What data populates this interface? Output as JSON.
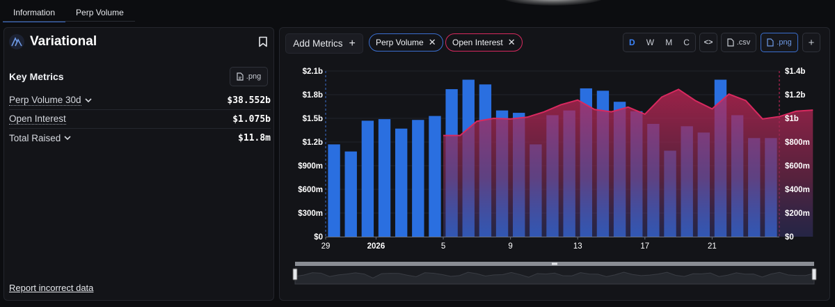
{
  "tabs": [
    {
      "label": "Information",
      "active": true
    },
    {
      "label": "Perp Volume",
      "active": false
    }
  ],
  "project": {
    "name": "Variational",
    "logo_icon": "variational-logo-icon",
    "bookmark_icon": "bookmark-icon"
  },
  "key_metrics": {
    "title": "Key Metrics",
    "export_label": ".png",
    "rows": [
      {
        "label": "Perp Volume 30d",
        "value": "$38.552b",
        "has_dropdown": true,
        "dotted": true
      },
      {
        "label": "Open Interest",
        "value": "$1.075b",
        "has_dropdown": false,
        "dotted": true
      },
      {
        "label": "Total Raised",
        "value": "$11.8m",
        "has_dropdown": true,
        "dotted": false
      }
    ]
  },
  "report_link": "Report incorrect data",
  "toolbar": {
    "add_metrics": "Add Metrics",
    "add_icon": "+",
    "chips": [
      {
        "label": "Perp Volume",
        "color": "#3b6fd0"
      },
      {
        "label": "Open Interest",
        "color": "#d8295f"
      }
    ],
    "timeframes": [
      {
        "label": "D",
        "active": true
      },
      {
        "label": "W",
        "active": false
      },
      {
        "label": "M",
        "active": false
      },
      {
        "label": "C",
        "active": false
      }
    ],
    "embed_label": "<>",
    "csv_label": ".csv",
    "png_label": ".png",
    "plus_label": "+"
  },
  "colors": {
    "perp_volume": "#2a6fe0",
    "open_interest": "#d8295f",
    "accent": "#3b82f6"
  },
  "chart_data": {
    "type": "bar",
    "x_labels": [
      "29",
      "2026",
      "5",
      "9",
      "13",
      "17",
      "21"
    ],
    "left_axis": {
      "ticks": [
        "$0",
        "$300m",
        "$600m",
        "$900m",
        "$1.2b",
        "$1.5b",
        "$1.8b",
        "$2.1b"
      ],
      "ylim": [
        0,
        2.1
      ]
    },
    "right_axis": {
      "ticks": [
        "$0",
        "$200m",
        "$400m",
        "$600m",
        "$800m",
        "$1b",
        "$1.2b",
        "$1.4b"
      ],
      "ylim": [
        0,
        1.4
      ]
    },
    "series": [
      {
        "name": "Perp Volume",
        "type": "bar",
        "axis": "left",
        "values": [
          1.17,
          1.08,
          1.47,
          1.49,
          1.37,
          1.48,
          1.53,
          1.87,
          1.99,
          1.93,
          1.6,
          1.57,
          1.17,
          1.54,
          1.6,
          1.88,
          1.85,
          1.71,
          1.59,
          1.43,
          1.09,
          1.4,
          1.32,
          1.99,
          1.54,
          1.25,
          1.25
        ]
      },
      {
        "name": "Open Interest",
        "type": "area",
        "axis": "right",
        "start_index": 6.5,
        "values": [
          0.855,
          0.855,
          0.975,
          1.0,
          0.995,
          1.01,
          1.055,
          1.115,
          1.155,
          1.075,
          1.055,
          1.095,
          1.035,
          1.18,
          1.245,
          1.15,
          1.08,
          1.205,
          1.15,
          0.995,
          1.015,
          1.06,
          1.07
        ]
      }
    ],
    "grid": true,
    "legend": "none"
  }
}
